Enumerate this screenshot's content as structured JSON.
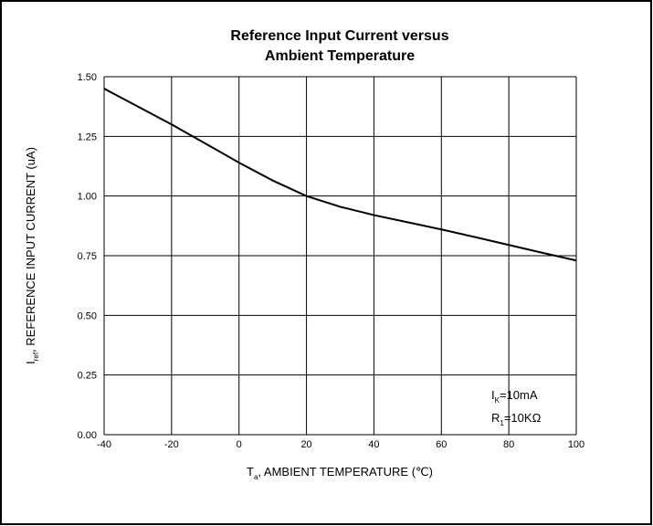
{
  "chart_data": {
    "type": "line",
    "title": [
      "Reference Input Current versus",
      "Ambient Temperature"
    ],
    "xlabel": {
      "main": "T",
      "sub": "a",
      "rest": ", AMBIENT TEMPERATURE    (℃)"
    },
    "ylabel": {
      "main": "I",
      "sub": "ref",
      "rest": ", REFERENCE INPUT CURRENT    (uA)"
    },
    "annotations": [
      {
        "main": "I",
        "sub": "K",
        "rest": "=10mA"
      },
      {
        "main": "R",
        "sub": "1",
        "rest": "=10KΩ"
      }
    ],
    "x": [
      -40,
      -30,
      -20,
      -10,
      0,
      10,
      20,
      30,
      40,
      50,
      60,
      70,
      80,
      90,
      100
    ],
    "values": [
      1.45,
      1.375,
      1.3,
      1.22,
      1.14,
      1.065,
      1.0,
      0.955,
      0.92,
      0.89,
      0.86,
      0.828,
      0.795,
      0.762,
      0.73
    ],
    "color": "#000000",
    "xlim": [
      -40,
      100
    ],
    "xticks": [
      -40,
      -20,
      0,
      20,
      40,
      60,
      80,
      100
    ],
    "ylim": [
      0,
      1.5
    ],
    "yticks": [
      {
        "value": 0,
        "label": "0.00"
      },
      {
        "value": 0.25,
        "label": "0.25"
      },
      {
        "value": 0.5,
        "label": "0.50"
      },
      {
        "value": 0.75,
        "label": "0.75"
      },
      {
        "value": 1,
        "label": "1.00"
      },
      {
        "value": 1.25,
        "label": "1.25"
      },
      {
        "value": 1.5,
        "label": "1.50"
      }
    ],
    "grid": true
  }
}
